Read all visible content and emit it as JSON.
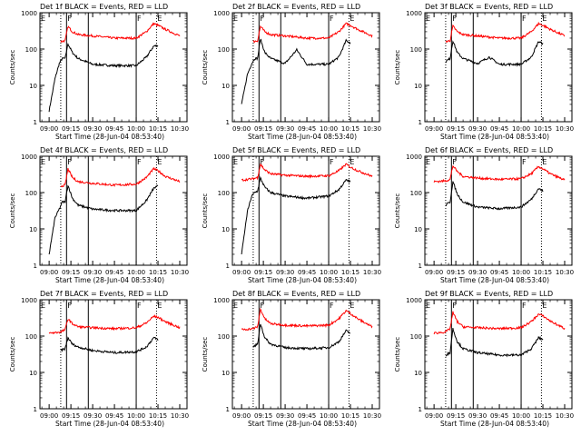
{
  "figure": {
    "panel_title_suffix": "BLACK = Events, RED = LLD",
    "xlabel": "Start Time (28-Jun-04 08:53:40)",
    "ylabel": "Counts/sec",
    "xticks": [
      "09:00",
      "09:15",
      "09:30",
      "09:45",
      "10:00",
      "10:15",
      "10:30"
    ],
    "yticks": [
      "1",
      "10",
      "100",
      "1000"
    ],
    "marker_labels": [
      "E",
      "F",
      "F",
      "E"
    ],
    "colors": {
      "events": "#000000",
      "lld": "#ff0000"
    }
  },
  "chart_data": [
    {
      "type": "line",
      "title": "Det 1f BLACK = Events, RED = LLD",
      "xlabel": "Start Time (28-Jun-04 08:53:40)",
      "ylabel": "Counts/sec",
      "x_time_range": [
        "08:53:40",
        "10:35"
      ],
      "ylim": [
        1,
        1000
      ],
      "yscale": "log",
      "markers": {
        "dotted": [
          "09:08",
          "10:14"
        ],
        "solid": [
          "09:12",
          "09:27",
          "10:00"
        ]
      },
      "series": [
        {
          "name": "Events",
          "color": "#000000",
          "x": [
            "09:00",
            "09:04",
            "09:07",
            "09:09",
            "09:11",
            "09:13",
            "09:16",
            "09:20",
            "09:30",
            "09:45",
            "10:00",
            "10:07",
            "10:12",
            "10:15"
          ],
          "values": [
            2,
            15,
            40,
            55,
            55,
            140,
            80,
            55,
            38,
            35,
            35,
            60,
            120,
            125
          ]
        },
        {
          "name": "LLD",
          "color": "#ff0000",
          "x": [
            "09:08",
            "09:11",
            "09:13",
            "09:16",
            "09:20",
            "09:30",
            "09:45",
            "10:00",
            "10:07",
            "10:12",
            "10:15",
            "10:20",
            "10:30"
          ],
          "values": [
            160,
            170,
            420,
            300,
            250,
            230,
            200,
            200,
            300,
            500,
            450,
            350,
            230
          ]
        }
      ]
    },
    {
      "type": "line",
      "title": "Det 2f BLACK = Events, RED = LLD",
      "xlabel": "Start Time (28-Jun-04 08:53:40)",
      "ylabel": "Counts/sec",
      "x_time_range": [
        "08:53:40",
        "10:35"
      ],
      "ylim": [
        1,
        1000
      ],
      "yscale": "log",
      "markers": {
        "dotted": [
          "09:08",
          "10:14"
        ],
        "solid": [
          "09:12",
          "09:27",
          "10:00"
        ]
      },
      "series": [
        {
          "name": "Events",
          "color": "#000000",
          "x": [
            "09:00",
            "09:04",
            "09:07",
            "09:09",
            "09:11",
            "09:13",
            "09:16",
            "09:20",
            "09:30",
            "09:38",
            "09:45",
            "10:00",
            "10:07",
            "10:12",
            "10:15"
          ],
          "values": [
            3,
            20,
            40,
            55,
            55,
            190,
            80,
            55,
            40,
            95,
            38,
            38,
            60,
            170,
            150
          ]
        },
        {
          "name": "LLD",
          "color": "#ff0000",
          "x": [
            "09:08",
            "09:11",
            "09:13",
            "09:16",
            "09:20",
            "09:30",
            "09:45",
            "10:00",
            "10:07",
            "10:12",
            "10:15",
            "10:20",
            "10:30"
          ],
          "values": [
            160,
            170,
            420,
            300,
            250,
            230,
            200,
            200,
            300,
            500,
            450,
            350,
            230
          ]
        }
      ]
    },
    {
      "type": "line",
      "title": "Det 3f BLACK = Events, RED = LLD",
      "xlabel": "Start Time (28-Jun-04 08:53:40)",
      "ylabel": "Counts/sec",
      "x_time_range": [
        "08:53:40",
        "10:35"
      ],
      "ylim": [
        1,
        1000
      ],
      "yscale": "log",
      "markers": {
        "dotted": [
          "09:08",
          "10:14"
        ],
        "solid": [
          "09:12",
          "09:27",
          "10:00"
        ]
      },
      "series": [
        {
          "name": "Events",
          "color": "#000000",
          "x": [
            "09:08",
            "09:11",
            "09:13",
            "09:16",
            "09:20",
            "09:30",
            "09:38",
            "09:45",
            "10:00",
            "10:07",
            "10:12",
            "10:15"
          ],
          "values": [
            45,
            55,
            170,
            80,
            55,
            40,
            60,
            38,
            38,
            60,
            160,
            140
          ]
        },
        {
          "name": "LLD",
          "color": "#ff0000",
          "x": [
            "09:08",
            "09:11",
            "09:13",
            "09:16",
            "09:20",
            "09:30",
            "09:45",
            "10:00",
            "10:07",
            "10:12",
            "10:15",
            "10:20",
            "10:30"
          ],
          "values": [
            160,
            170,
            430,
            300,
            250,
            230,
            200,
            200,
            300,
            500,
            450,
            350,
            230
          ]
        }
      ]
    },
    {
      "type": "line",
      "title": "Det 4f BLACK = Events, RED = LLD",
      "xlabel": "Start Time (28-Jun-04 08:53:40)",
      "ylabel": "Counts/sec",
      "x_time_range": [
        "08:53:40",
        "10:35"
      ],
      "ylim": [
        1,
        1000
      ],
      "yscale": "log",
      "markers": {
        "dotted": [
          "09:08",
          "10:14"
        ],
        "solid": [
          "09:12",
          "09:27",
          "10:00"
        ]
      },
      "series": [
        {
          "name": "Events",
          "color": "#000000",
          "x": [
            "09:00",
            "09:04",
            "09:07",
            "09:09",
            "09:11",
            "09:13",
            "09:16",
            "09:20",
            "09:30",
            "09:45",
            "10:00",
            "10:07",
            "10:12",
            "10:15"
          ],
          "values": [
            2,
            20,
            35,
            55,
            55,
            160,
            70,
            45,
            35,
            32,
            32,
            60,
            130,
            150
          ]
        },
        {
          "name": "LLD",
          "color": "#ff0000",
          "x": [
            "09:08",
            "09:11",
            "09:13",
            "09:16",
            "09:20",
            "09:30",
            "09:45",
            "10:00",
            "10:07",
            "10:12",
            "10:15",
            "10:20",
            "10:30"
          ],
          "values": [
            150,
            160,
            450,
            260,
            200,
            180,
            160,
            170,
            260,
            450,
            400,
            280,
            200
          ]
        }
      ]
    },
    {
      "type": "line",
      "title": "Det 5f BLACK = Events, RED = LLD",
      "xlabel": "Start Time (28-Jun-04 08:53:40)",
      "ylabel": "Counts/sec",
      "x_time_range": [
        "08:53:40",
        "10:35"
      ],
      "ylim": [
        1,
        1000
      ],
      "yscale": "log",
      "markers": {
        "dotted": [
          "09:08",
          "10:14"
        ],
        "solid": [
          "09:12",
          "09:27",
          "10:00"
        ]
      },
      "series": [
        {
          "name": "Events",
          "color": "#000000",
          "x": [
            "09:00",
            "09:04",
            "09:07",
            "09:09",
            "09:11",
            "09:13",
            "09:16",
            "09:20",
            "09:30",
            "09:45",
            "10:00",
            "10:07",
            "10:12",
            "10:15"
          ],
          "values": [
            2,
            30,
            80,
            100,
            110,
            250,
            140,
            100,
            80,
            70,
            80,
            120,
            220,
            200
          ]
        },
        {
          "name": "LLD",
          "color": "#ff0000",
          "x": [
            "09:00",
            "09:08",
            "09:11",
            "09:13",
            "09:16",
            "09:20",
            "09:30",
            "09:45",
            "10:00",
            "10:07",
            "10:12",
            "10:15",
            "10:20",
            "10:30"
          ],
          "values": [
            220,
            240,
            260,
            600,
            420,
            330,
            300,
            280,
            290,
            400,
            600,
            500,
            400,
            280
          ]
        }
      ]
    },
    {
      "type": "line",
      "title": "Det 6f BLACK = Events, RED = LLD",
      "xlabel": "Start Time (28-Jun-04 08:53:40)",
      "ylabel": "Counts/sec",
      "x_time_range": [
        "08:53:40",
        "10:35"
      ],
      "ylim": [
        1,
        1000
      ],
      "yscale": "log",
      "markers": {
        "dotted": [
          "09:08",
          "10:14"
        ],
        "solid": [
          "09:12",
          "09:27",
          "10:00"
        ]
      },
      "series": [
        {
          "name": "Events",
          "color": "#000000",
          "x": [
            "09:08",
            "09:11",
            "09:13",
            "09:16",
            "09:20",
            "09:30",
            "09:45",
            "10:00",
            "10:07",
            "10:12",
            "10:15"
          ],
          "values": [
            45,
            55,
            200,
            90,
            55,
            40,
            36,
            40,
            65,
            130,
            110
          ]
        },
        {
          "name": "LLD",
          "color": "#ff0000",
          "x": [
            "09:00",
            "09:08",
            "09:11",
            "09:13",
            "09:16",
            "09:20",
            "09:30",
            "09:45",
            "10:00",
            "10:07",
            "10:12",
            "10:15",
            "10:20",
            "10:30"
          ],
          "values": [
            200,
            210,
            230,
            550,
            380,
            280,
            250,
            230,
            240,
            330,
            520,
            450,
            330,
            220
          ]
        }
      ]
    },
    {
      "type": "line",
      "title": "Det 7f BLACK = Events, RED = LLD",
      "xlabel": "Start Time (28-Jun-04 08:53:40)",
      "ylabel": "Counts/sec",
      "x_time_range": [
        "08:53:40",
        "10:35"
      ],
      "ylim": [
        1,
        1000
      ],
      "yscale": "log",
      "markers": {
        "dotted": [
          "09:08",
          "10:14"
        ],
        "solid": [
          "09:12",
          "09:27",
          "10:00"
        ]
      },
      "series": [
        {
          "name": "Events",
          "color": "#000000",
          "x": [
            "09:08",
            "09:11",
            "09:13",
            "09:16",
            "09:20",
            "09:30",
            "09:45",
            "10:00",
            "10:07",
            "10:12",
            "10:15"
          ],
          "values": [
            40,
            45,
            90,
            60,
            50,
            40,
            35,
            37,
            50,
            90,
            80
          ]
        },
        {
          "name": "LLD",
          "color": "#ff0000",
          "x": [
            "09:00",
            "09:08",
            "09:11",
            "09:13",
            "09:16",
            "09:20",
            "09:30",
            "09:45",
            "10:00",
            "10:07",
            "10:12",
            "10:15",
            "10:20",
            "10:30"
          ],
          "values": [
            120,
            130,
            150,
            300,
            220,
            180,
            170,
            160,
            170,
            230,
            350,
            330,
            250,
            170
          ]
        }
      ]
    },
    {
      "type": "line",
      "title": "Det 8f BLACK = Events, RED = LLD",
      "xlabel": "Start Time (28-Jun-04 08:53:40)",
      "ylabel": "Counts/sec",
      "x_time_range": [
        "08:53:40",
        "10:35"
      ],
      "ylim": [
        1,
        1000
      ],
      "yscale": "log",
      "markers": {
        "dotted": [
          "09:08",
          "10:14"
        ],
        "solid": [
          "09:12",
          "09:27",
          "10:00"
        ]
      },
      "series": [
        {
          "name": "Events",
          "color": "#000000",
          "x": [
            "09:08",
            "09:11",
            "09:13",
            "09:16",
            "09:20",
            "09:30",
            "09:45",
            "10:00",
            "10:07",
            "10:12",
            "10:15"
          ],
          "values": [
            50,
            60,
            220,
            90,
            60,
            48,
            45,
            48,
            70,
            140,
            120
          ]
        },
        {
          "name": "LLD",
          "color": "#ff0000",
          "x": [
            "09:00",
            "09:08",
            "09:11",
            "09:13",
            "09:16",
            "09:20",
            "09:30",
            "09:45",
            "10:00",
            "10:07",
            "10:12",
            "10:15",
            "10:20",
            "10:30"
          ],
          "values": [
            150,
            160,
            180,
            550,
            300,
            220,
            200,
            190,
            200,
            300,
            500,
            420,
            300,
            180
          ]
        }
      ]
    },
    {
      "type": "line",
      "title": "Det 9f BLACK = Events, RED = LLD",
      "xlabel": "Start Time (28-Jun-04 08:53:40)",
      "ylabel": "Counts/sec",
      "x_time_range": [
        "08:53:40",
        "10:35"
      ],
      "ylim": [
        1,
        1000
      ],
      "yscale": "log",
      "markers": {
        "dotted": [
          "09:08",
          "10:14"
        ],
        "solid": [
          "09:12",
          "09:27",
          "10:00"
        ]
      },
      "series": [
        {
          "name": "Events",
          "color": "#000000",
          "x": [
            "09:08",
            "09:11",
            "09:13",
            "09:16",
            "09:20",
            "09:30",
            "09:45",
            "10:00",
            "10:07",
            "10:12",
            "10:15"
          ],
          "values": [
            30,
            35,
            160,
            70,
            45,
            35,
            30,
            30,
            45,
            90,
            80
          ]
        },
        {
          "name": "LLD",
          "color": "#ff0000",
          "x": [
            "09:00",
            "09:08",
            "09:11",
            "09:13",
            "09:16",
            "09:20",
            "09:30",
            "09:45",
            "10:00",
            "10:07",
            "10:12",
            "10:15",
            "10:20",
            "10:30"
          ],
          "values": [
            120,
            130,
            160,
            450,
            250,
            180,
            170,
            160,
            170,
            250,
            400,
            360,
            260,
            160
          ]
        }
      ]
    }
  ]
}
